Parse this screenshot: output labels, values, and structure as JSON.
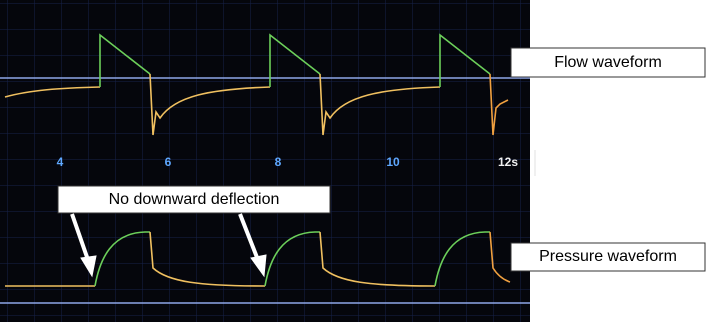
{
  "annotation": "No downward deflection",
  "flow_label": "Flow waveform",
  "pressure_label": "Pressure waveform",
  "time_axis": {
    "labels": [
      "4",
      "6",
      "8",
      "10",
      "12s"
    ]
  }
}
